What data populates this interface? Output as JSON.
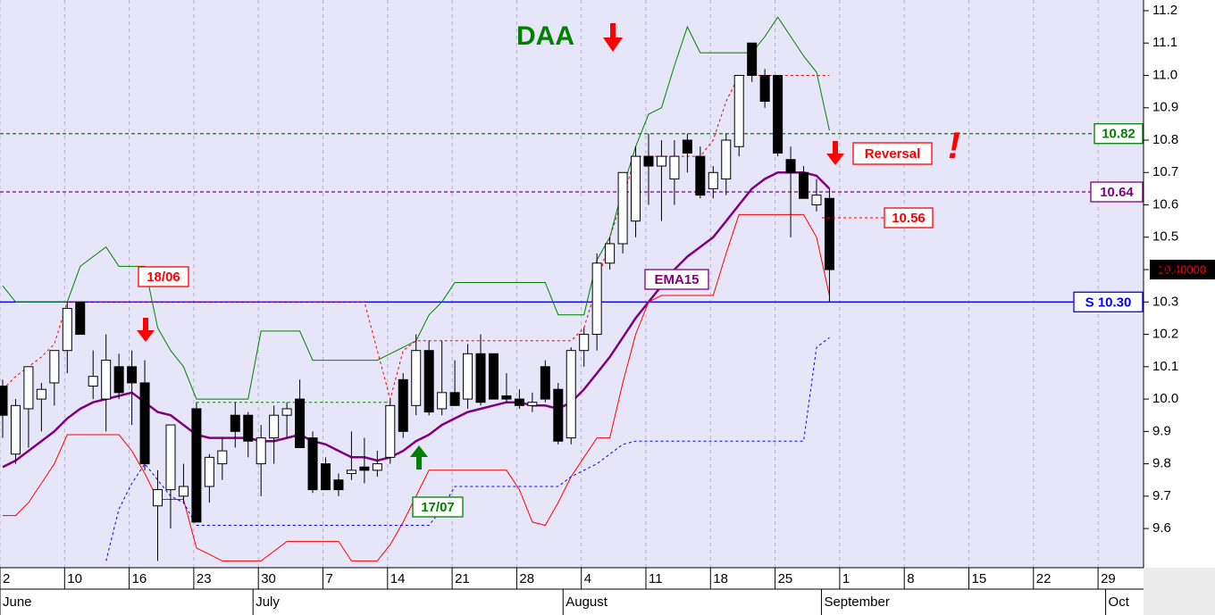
{
  "chart_data": {
    "type": "candlestick",
    "title": "DAA",
    "categories": [
      "2",
      null,
      null,
      null,
      null,
      "10",
      null,
      null,
      null,
      null,
      "16",
      null,
      null,
      null,
      null,
      "23",
      null,
      null,
      null,
      null,
      "30",
      null,
      null,
      null,
      null,
      "7",
      null,
      null,
      null,
      null,
      "14",
      null,
      null,
      null,
      null,
      "21",
      null,
      null,
      null,
      null,
      "28",
      null,
      null,
      null,
      null,
      "4",
      null,
      null,
      null,
      null,
      "11",
      null,
      null,
      null,
      null,
      "18",
      null,
      null,
      null,
      null,
      "25",
      null,
      null,
      null,
      null,
      "1",
      null,
      null,
      null,
      null,
      "8",
      null,
      null,
      null,
      null,
      "15",
      null,
      null,
      null,
      null,
      "22",
      null,
      null,
      null,
      null,
      "29",
      null,
      null,
      null
    ],
    "months": [
      "June",
      null,
      null,
      null,
      null,
      null,
      null,
      null,
      null,
      null,
      null,
      null,
      null,
      null,
      null,
      null,
      null,
      null,
      null,
      null,
      "July",
      null,
      null,
      null,
      null,
      null,
      null,
      null,
      null,
      null,
      null,
      null,
      null,
      null,
      null,
      null,
      null,
      null,
      null,
      null,
      null,
      null,
      null,
      null,
      "August",
      null,
      null,
      null,
      null,
      null,
      null,
      null,
      null,
      null,
      null,
      null,
      null,
      null,
      null,
      null,
      null,
      null,
      null,
      null,
      "September",
      null,
      null,
      null,
      null,
      null,
      null,
      null,
      null,
      null,
      null,
      null,
      null,
      null,
      null,
      null,
      null,
      null,
      null,
      null,
      null,
      null,
      "Oct",
      null,
      null
    ],
    "candles": {
      "up_color": "#ffffff",
      "down_color": "#000000",
      "open": [
        10.04,
        9.83,
        9.97,
        10.0,
        10.05,
        10.15,
        10.3,
        10.04,
        10.0,
        10.1,
        10.1,
        10.05,
        9.67,
        9.72,
        9.7,
        9.97,
        9.73,
        9.8,
        9.95,
        9.95,
        9.8,
        9.88,
        9.95,
        10.0,
        9.88,
        9.8,
        9.75,
        9.77,
        9.79,
        9.78,
        9.82,
        10.06,
        9.98,
        10.15,
        9.97,
        10.02,
        10.0,
        10.14,
        10.14,
        10.01,
        10.0,
        9.98,
        10.1,
        10.03,
        9.88,
        10.15,
        10.2,
        10.42,
        10.48,
        10.55,
        10.75,
        10.72,
        10.68,
        10.8,
        10.75,
        10.65,
        10.68,
        10.78,
        11.1,
        11.0,
        11.0,
        10.74,
        10.7,
        10.6,
        10.62,
        null,
        null,
        null,
        null,
        null,
        null,
        null,
        null,
        null,
        null,
        null,
        null,
        null,
        null,
        null,
        null,
        null,
        null,
        null,
        null,
        null,
        null,
        null,
        null
      ],
      "high": [
        10.06,
        10.0,
        10.1,
        10.05,
        10.15,
        10.3,
        10.3,
        10.15,
        10.2,
        10.14,
        10.15,
        10.12,
        9.78,
        9.92,
        9.8,
        9.99,
        9.83,
        9.88,
        9.99,
        9.96,
        9.92,
        9.98,
        9.99,
        10.06,
        9.9,
        9.82,
        9.77,
        9.9,
        9.88,
        9.84,
        10.0,
        10.08,
        10.2,
        10.18,
        10.18,
        10.12,
        10.17,
        10.2,
        10.14,
        10.08,
        10.03,
        10.02,
        10.12,
        10.05,
        10.16,
        10.22,
        10.45,
        10.5,
        10.7,
        10.78,
        10.82,
        10.8,
        10.8,
        10.82,
        10.78,
        10.72,
        10.82,
        11.0,
        11.1,
        11.02,
        11.0,
        10.78,
        10.72,
        10.68,
        10.65,
        null,
        null,
        null,
        null,
        null,
        null,
        null,
        null,
        null,
        null,
        null,
        null,
        null,
        null,
        null,
        null,
        null,
        null,
        null,
        null,
        null,
        null,
        null,
        null
      ],
      "low": [
        9.88,
        9.8,
        9.85,
        9.9,
        9.98,
        10.08,
        10.2,
        10.0,
        9.9,
        10.0,
        9.92,
        9.78,
        9.5,
        9.6,
        9.68,
        9.62,
        9.68,
        9.75,
        9.85,
        9.82,
        9.7,
        9.8,
        9.88,
        9.85,
        9.71,
        9.72,
        9.7,
        9.75,
        9.74,
        9.76,
        9.8,
        9.88,
        9.95,
        9.95,
        9.95,
        9.98,
        9.97,
        9.98,
        10.0,
        9.99,
        9.97,
        9.96,
        9.99,
        9.86,
        9.86,
        10.1,
        10.15,
        10.4,
        10.45,
        10.5,
        10.6,
        10.55,
        10.6,
        10.7,
        10.62,
        10.62,
        10.63,
        10.75,
        10.98,
        10.9,
        10.75,
        10.5,
        10.62,
        10.58,
        10.3,
        null,
        null,
        null,
        null,
        null,
        null,
        null,
        null,
        null,
        null,
        null,
        null,
        null,
        null,
        null,
        null,
        null,
        null,
        null,
        null,
        null,
        null,
        null,
        null
      ],
      "close": [
        9.95,
        9.98,
        10.1,
        10.03,
        10.15,
        10.28,
        10.2,
        10.07,
        10.12,
        10.02,
        10.05,
        9.8,
        9.72,
        9.92,
        9.73,
        9.62,
        9.82,
        9.84,
        9.9,
        9.87,
        9.88,
        9.95,
        9.97,
        9.85,
        9.72,
        9.72,
        9.72,
        9.78,
        9.78,
        9.8,
        9.98,
        9.9,
        10.15,
        9.96,
        10.02,
        9.98,
        10.14,
        9.99,
        10.0,
        10.0,
        9.98,
        9.99,
        10.0,
        9.87,
        10.15,
        10.2,
        10.42,
        10.48,
        10.7,
        10.75,
        10.72,
        10.75,
        10.75,
        10.76,
        10.63,
        10.7,
        10.8,
        11.0,
        11.0,
        10.92,
        10.76,
        10.7,
        10.62,
        10.63,
        10.4,
        null,
        null,
        null,
        null,
        null,
        null,
        null,
        null,
        null,
        null,
        null,
        null,
        null,
        null,
        null,
        null,
        null,
        null,
        null,
        null,
        null,
        null,
        null,
        null
      ]
    },
    "lines": [
      {
        "name": "EMA15",
        "color": "#800080",
        "width": 2.5,
        "dash": false,
        "values": [
          9.79,
          9.81,
          9.84,
          9.87,
          9.9,
          9.94,
          9.97,
          9.99,
          10.0,
          10.01,
          10.02,
          9.99,
          9.96,
          9.95,
          9.92,
          9.89,
          9.88,
          9.88,
          9.88,
          9.88,
          9.87,
          9.87,
          9.88,
          9.89,
          9.87,
          9.86,
          9.84,
          9.82,
          9.82,
          9.81,
          9.82,
          9.84,
          9.87,
          9.89,
          9.92,
          9.94,
          9.96,
          9.97,
          9.98,
          9.99,
          9.99,
          9.98,
          9.98,
          9.97,
          9.99,
          10.03,
          10.08,
          10.13,
          10.19,
          10.25,
          10.3,
          10.35,
          10.4,
          10.44,
          10.47,
          10.5,
          10.55,
          10.6,
          10.65,
          10.68,
          10.7,
          10.7,
          10.7,
          10.69,
          10.65,
          null,
          null,
          null,
          null,
          null,
          null,
          null,
          null,
          null,
          null,
          null,
          null,
          null,
          null,
          null,
          null,
          null,
          null,
          null,
          null,
          null,
          null,
          null,
          null
        ]
      },
      {
        "color": "#008000",
        "width": 1,
        "dash": false,
        "values": [
          10.35,
          10.3,
          10.3,
          10.3,
          10.3,
          10.3,
          10.41,
          10.44,
          10.47,
          10.41,
          10.41,
          10.41,
          10.22,
          10.15,
          10.1,
          10.0,
          10.0,
          10.0,
          10.0,
          10.0,
          10.21,
          10.21,
          10.21,
          10.21,
          10.12,
          10.12,
          10.12,
          10.12,
          10.12,
          10.12,
          10.14,
          10.16,
          10.18,
          10.26,
          10.3,
          10.36,
          10.36,
          10.36,
          10.36,
          10.36,
          10.36,
          10.36,
          10.36,
          10.26,
          10.26,
          10.26,
          10.43,
          10.5,
          10.65,
          10.78,
          10.88,
          10.9,
          11.03,
          11.15,
          11.07,
          11.07,
          11.07,
          11.07,
          11.07,
          11.12,
          11.18,
          11.12,
          11.06,
          11.01,
          10.83,
          null,
          null,
          null,
          null,
          null,
          null,
          null,
          null,
          null,
          null,
          null,
          null,
          null,
          null,
          null,
          null,
          null,
          null,
          null,
          null,
          null,
          null,
          null,
          null
        ]
      },
      {
        "color": "#ff0000",
        "width": 1,
        "dash": false,
        "values": [
          9.64,
          9.64,
          9.68,
          9.74,
          9.8,
          9.89,
          9.89,
          9.89,
          9.89,
          9.89,
          9.84,
          9.77,
          9.69,
          9.69,
          9.69,
          9.54,
          9.52,
          9.5,
          9.5,
          9.5,
          9.5,
          9.53,
          9.56,
          9.56,
          9.56,
          9.56,
          9.56,
          9.5,
          9.5,
          9.5,
          9.55,
          9.62,
          9.7,
          9.78,
          9.78,
          9.78,
          9.78,
          9.78,
          9.78,
          9.78,
          9.72,
          9.62,
          9.61,
          9.68,
          9.76,
          9.82,
          9.88,
          9.88,
          10.05,
          10.2,
          10.3,
          10.32,
          10.32,
          10.32,
          10.32,
          10.32,
          10.45,
          10.57,
          10.57,
          10.57,
          10.57,
          10.57,
          10.57,
          10.5,
          10.32,
          null,
          null,
          null,
          null,
          null,
          null,
          null,
          null,
          null,
          null,
          null,
          null,
          null,
          null,
          null,
          null,
          null,
          null,
          null,
          null,
          null,
          null,
          null,
          null
        ]
      },
      {
        "color": "#ff0000",
        "width": 1,
        "dash": true,
        "values": [
          10.03,
          10.07,
          10.1,
          10.13,
          10.17,
          10.3,
          10.3,
          10.3,
          10.3,
          10.3,
          10.3,
          10.3,
          10.3,
          10.3,
          10.3,
          10.3,
          10.3,
          10.3,
          10.3,
          10.3,
          10.3,
          10.3,
          10.3,
          10.3,
          10.3,
          10.3,
          10.3,
          10.3,
          10.3,
          10.15,
          10.0,
          10.15,
          10.18,
          10.18,
          10.18,
          10.18,
          10.18,
          10.18,
          10.18,
          10.18,
          10.18,
          10.18,
          10.18,
          10.18,
          10.18,
          10.22,
          10.35,
          10.5,
          10.62,
          10.75,
          10.75,
          10.75,
          10.75,
          10.75,
          10.75,
          10.8,
          10.92,
          11.0,
          11.0,
          11.0,
          11.0,
          11.0,
          11.0,
          11.0,
          11.0,
          null,
          null,
          null,
          null,
          null,
          null,
          null,
          null,
          null,
          null,
          null,
          null,
          null,
          null,
          null,
          null,
          null,
          null,
          null,
          null,
          null,
          null,
          null,
          null
        ]
      },
      {
        "color": "#008000",
        "width": 1,
        "dash": true,
        "values": [
          null,
          null,
          null,
          null,
          null,
          null,
          null,
          null,
          null,
          null,
          null,
          null,
          null,
          null,
          null,
          9.99,
          9.99,
          9.99,
          9.99,
          9.99,
          9.99,
          9.99,
          9.99,
          9.99,
          9.99,
          9.99,
          9.99,
          9.99,
          9.99,
          9.99,
          9.99,
          null,
          null,
          null,
          null,
          null,
          null,
          null,
          null,
          null,
          null,
          null,
          null,
          null,
          null,
          null,
          null,
          null,
          null,
          null,
          null,
          null,
          null,
          null,
          null,
          null,
          null,
          null,
          null,
          null,
          null,
          null,
          null,
          null,
          null,
          null,
          null,
          null,
          null,
          null,
          null,
          null,
          null,
          null,
          null,
          null,
          null,
          null,
          null,
          null,
          null,
          null,
          null,
          null,
          null,
          null,
          null,
          null,
          null
        ]
      },
      {
        "color": "#0000ff",
        "width": 1,
        "dash": true,
        "values": [
          null,
          null,
          null,
          null,
          null,
          null,
          null,
          null,
          9.5,
          9.66,
          9.74,
          9.8,
          9.75,
          9.7,
          9.68,
          9.61,
          9.61,
          9.61,
          9.61,
          9.61,
          9.61,
          9.61,
          9.61,
          9.61,
          9.61,
          9.61,
          9.61,
          9.61,
          9.61,
          9.61,
          9.61,
          9.61,
          9.61,
          9.61,
          9.66,
          9.73,
          9.73,
          9.73,
          9.73,
          9.73,
          9.73,
          9.73,
          9.73,
          9.73,
          9.76,
          9.78,
          9.8,
          9.83,
          9.86,
          9.87,
          9.87,
          9.87,
          9.87,
          9.87,
          9.87,
          9.87,
          9.87,
          9.87,
          9.87,
          9.87,
          9.87,
          9.87,
          9.87,
          10.16,
          10.19,
          null,
          null,
          null,
          null,
          null,
          null,
          null,
          null,
          null,
          null,
          null,
          null,
          null,
          null,
          null,
          null,
          null,
          null,
          null,
          null,
          null,
          null,
          null,
          null
        ]
      }
    ],
    "levels": [
      {
        "value": 10.82,
        "label": "10.82",
        "color": "#008000",
        "dash": true
      },
      {
        "value": 10.64,
        "label": "10.64",
        "color": "#800080",
        "dash": true
      },
      {
        "value": 10.3,
        "label": "S 10.30",
        "color": "#0000ff",
        "dash": false
      }
    ],
    "stop_label": {
      "value": 10.56,
      "label": "10.56",
      "color": "#ff0000"
    },
    "last_price": {
      "value": 10.4,
      "label": "10.40000",
      "color": "#ff0000"
    },
    "annotations": [
      {
        "text": "18/06",
        "color": "#ff0000"
      },
      {
        "text": "17/07",
        "color": "#008000"
      },
      {
        "text": "Reversal",
        "color": "#ff0000"
      },
      {
        "text": "!",
        "color": "#ff0000"
      }
    ],
    "ylim": [
      9.49,
      11.233
    ],
    "yticks": [
      9.6,
      9.7,
      9.8,
      9.9,
      {
        "value": 10,
        "label": "10.0"
      },
      10.1,
      10.2,
      10.3,
      10.4,
      10.5,
      10.6,
      10.7,
      10.8,
      10.9,
      {
        "value": 11,
        "label": "11.0"
      },
      11.1,
      11.2
    ],
    "grid": true
  }
}
